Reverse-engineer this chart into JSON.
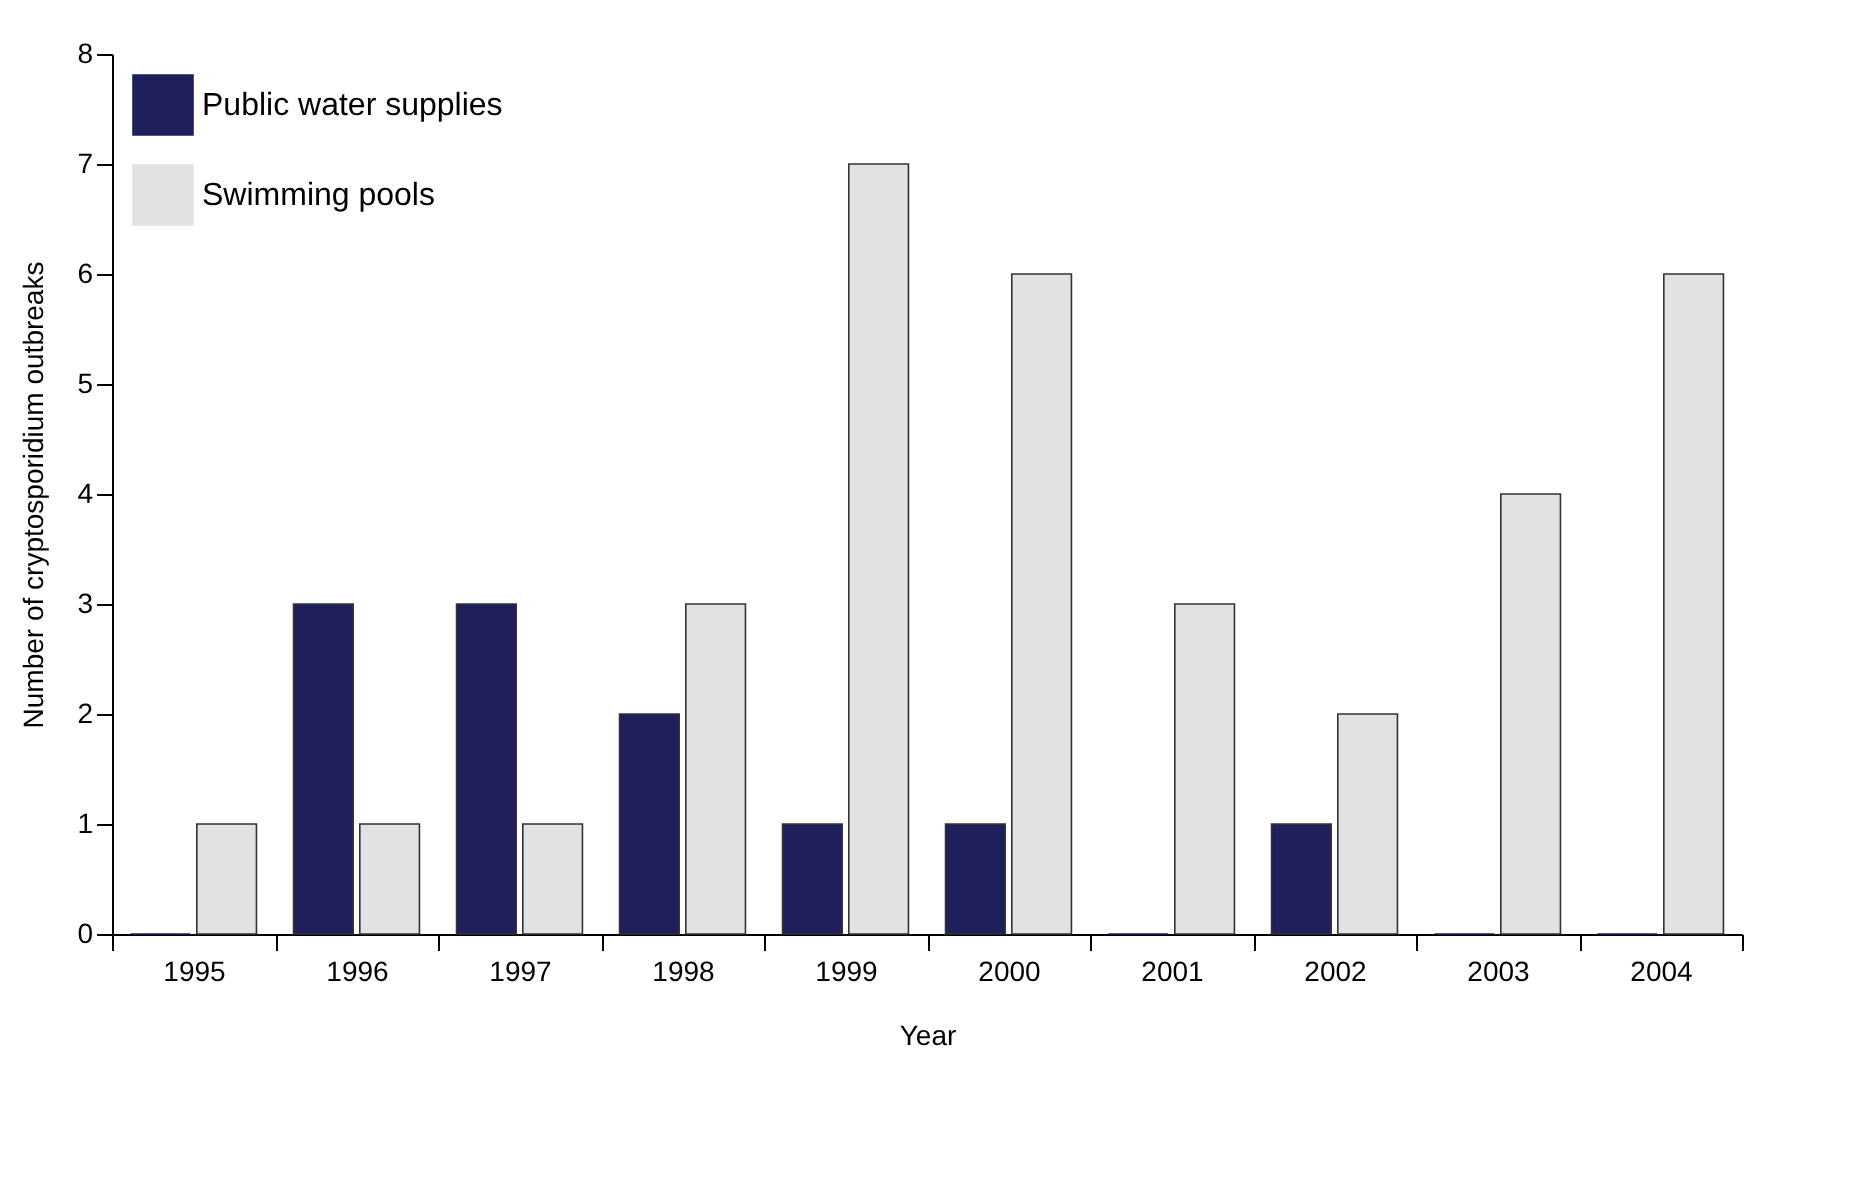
{
  "chart_data": {
    "type": "bar",
    "xlabel": "Year",
    "ylabel": "Number of cryptosporidium outbreaks",
    "categories": [
      "1995",
      "1996",
      "1997",
      "1998",
      "1999",
      "2000",
      "2001",
      "2002",
      "2003",
      "2004"
    ],
    "series": [
      {
        "name": "Public water supplies",
        "color": "#1f1f5c",
        "values": [
          0,
          3,
          3,
          2,
          1,
          1,
          0,
          1,
          0,
          0
        ]
      },
      {
        "name": "Swimming pools",
        "color": "#e1e2e4",
        "values": [
          1,
          1,
          1,
          3,
          7,
          6,
          3,
          2,
          4,
          6
        ]
      }
    ],
    "ylim": [
      0,
      8
    ],
    "yticks": [
      0,
      1,
      2,
      3,
      4,
      5,
      6,
      7,
      8
    ],
    "grid": false,
    "legend": "top left"
  }
}
